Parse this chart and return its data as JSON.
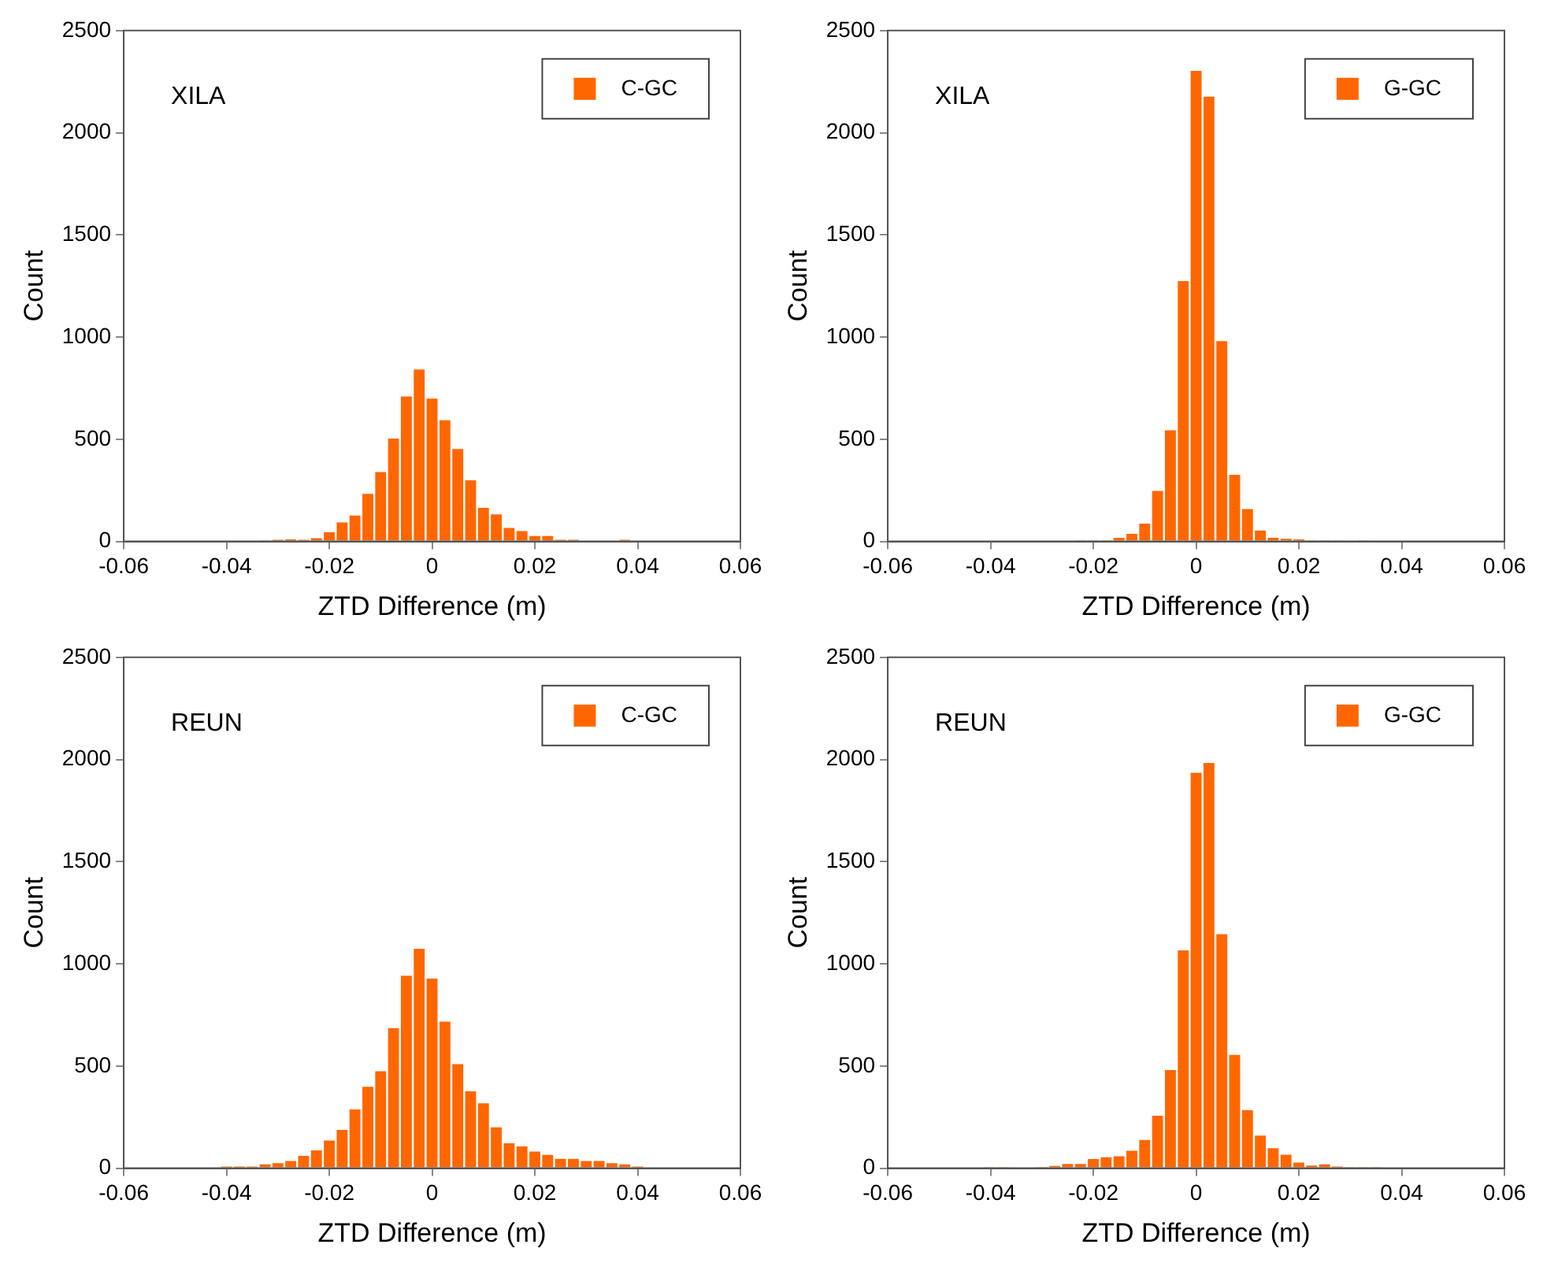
{
  "chart_data": [
    {
      "type": "histogram",
      "annotations": [
        "XILA"
      ],
      "xlabel": "ZTD Difference (m)",
      "ylabel": "Count",
      "legend": "top right",
      "grid": false,
      "bins": [
        -0.04125,
        -0.03875,
        -0.03625,
        -0.03375,
        -0.03125,
        -0.02875,
        -0.02625,
        -0.02375,
        -0.02125,
        -0.01875,
        -0.01625,
        -0.01375,
        -0.01125,
        -0.00875,
        -0.00625,
        -0.00375,
        -0.00125,
        0.00125,
        0.00375,
        0.00625,
        0.00875,
        0.01125,
        0.01375,
        0.01625,
        0.01875,
        0.02125,
        0.02375,
        0.02625,
        0.02875,
        0.03125,
        0.03375,
        0.03625,
        0.03875,
        0.04125
      ],
      "series": [
        {
          "name": "C-GC",
          "color": "#ff6600",
          "values": [
            0,
            0,
            0,
            5,
            8,
            10,
            8,
            16,
            45,
            93,
            127,
            233,
            339,
            503,
            709,
            841,
            699,
            593,
            452,
            299,
            164,
            132,
            66,
            50,
            26,
            26,
            8,
            8,
            0,
            0,
            0,
            8,
            0
          ]
        }
      ],
      "xlim": [
        -0.06,
        0.06
      ],
      "xticks": [
        -0.06,
        -0.04,
        -0.02,
        0,
        0.02,
        0.04,
        0.06
      ],
      "ylim": [
        0,
        2500
      ],
      "yticks": [
        0,
        500,
        1000,
        1500,
        2000,
        2500
      ]
    },
    {
      "type": "histogram",
      "annotations": [
        "XILA"
      ],
      "xlabel": "ZTD Difference (m)",
      "ylabel": "Count",
      "legend": "top right",
      "grid": false,
      "bins": [
        -0.04125,
        -0.03875,
        -0.03625,
        -0.03375,
        -0.03125,
        -0.02875,
        -0.02625,
        -0.02375,
        -0.02125,
        -0.01875,
        -0.01625,
        -0.01375,
        -0.01125,
        -0.00875,
        -0.00625,
        -0.00375,
        -0.00125,
        0.00125,
        0.00375,
        0.00625,
        0.00875,
        0.01125,
        0.01375,
        0.01625,
        0.01875,
        0.02125,
        0.02375,
        0.02625,
        0.02875,
        0.03125,
        0.03375,
        0.03625,
        0.03875,
        0.04125
      ],
      "series": [
        {
          "name": "G-GC",
          "color": "#ff6600",
          "values": [
            0,
            0,
            0,
            0,
            0,
            0,
            0,
            5,
            5,
            5,
            18,
            37,
            87,
            247,
            544,
            1274,
            2303,
            2177,
            980,
            326,
            158,
            53,
            18,
            13,
            10,
            5,
            5,
            5,
            0,
            5,
            0,
            0,
            0
          ]
        }
      ],
      "xlim": [
        -0.06,
        0.06
      ],
      "xticks": [
        -0.06,
        -0.04,
        -0.02,
        0,
        0.02,
        0.04,
        0.06
      ],
      "ylim": [
        0,
        2500
      ],
      "yticks": [
        0,
        500,
        1000,
        1500,
        2000,
        2500
      ]
    },
    {
      "type": "histogram",
      "annotations": [
        "REUN"
      ],
      "xlabel": "ZTD Difference (m)",
      "ylabel": "Count",
      "legend": "top right",
      "grid": false,
      "bins": [
        -0.04125,
        -0.03875,
        -0.03625,
        -0.03375,
        -0.03125,
        -0.02875,
        -0.02625,
        -0.02375,
        -0.02125,
        -0.01875,
        -0.01625,
        -0.01375,
        -0.01125,
        -0.00875,
        -0.00625,
        -0.00375,
        -0.00125,
        0.00125,
        0.00375,
        0.00625,
        0.00875,
        0.01125,
        0.01375,
        0.01625,
        0.01875,
        0.02125,
        0.02375,
        0.02625,
        0.02875,
        0.03125,
        0.03375,
        0.03625,
        0.03875,
        0.04125
      ],
      "series": [
        {
          "name": "C-GC",
          "color": "#ff6600",
          "values": [
            8,
            8,
            8,
            19,
            24,
            35,
            60,
            87,
            135,
            187,
            287,
            398,
            474,
            685,
            942,
            1074,
            928,
            717,
            509,
            376,
            317,
            200,
            122,
            106,
            81,
            65,
            46,
            46,
            35,
            35,
            24,
            19,
            8
          ]
        }
      ],
      "xlim": [
        -0.06,
        0.06
      ],
      "xticks": [
        -0.06,
        -0.04,
        -0.02,
        0,
        0.02,
        0.04,
        0.06
      ],
      "ylim": [
        0,
        2500
      ],
      "yticks": [
        0,
        500,
        1000,
        1500,
        2000,
        2500
      ]
    },
    {
      "type": "histogram",
      "annotations": [
        "REUN"
      ],
      "xlabel": "ZTD Difference (m)",
      "ylabel": "Count",
      "legend": "top right",
      "grid": false,
      "bins": [
        -0.04125,
        -0.03875,
        -0.03625,
        -0.03375,
        -0.03125,
        -0.02875,
        -0.02625,
        -0.02375,
        -0.02125,
        -0.01875,
        -0.01625,
        -0.01375,
        -0.01125,
        -0.00875,
        -0.00625,
        -0.00375,
        -0.00125,
        0.00125,
        0.00375,
        0.00625,
        0.00875,
        0.01125,
        0.01375,
        0.01625,
        0.01875,
        0.02125,
        0.02375,
        0.02625,
        0.02875,
        0.03125,
        0.03375,
        0.03625,
        0.03875,
        0.04125
      ],
      "series": [
        {
          "name": "G-GC",
          "color": "#ff6600",
          "values": [
            5,
            5,
            0,
            0,
            5,
            11,
            21,
            21,
            45,
            53,
            58,
            85,
            138,
            257,
            480,
            1066,
            1935,
            1983,
            1145,
            554,
            284,
            159,
            98,
            66,
            27,
            13,
            19,
            8,
            5,
            5,
            5,
            0,
            0
          ]
        }
      ],
      "xlim": [
        -0.06,
        0.06
      ],
      "xticks": [
        -0.06,
        -0.04,
        -0.02,
        0,
        0.02,
        0.04,
        0.06
      ],
      "ylim": [
        0,
        2500
      ],
      "yticks": [
        0,
        500,
        1000,
        1500,
        2000,
        2500
      ]
    }
  ]
}
